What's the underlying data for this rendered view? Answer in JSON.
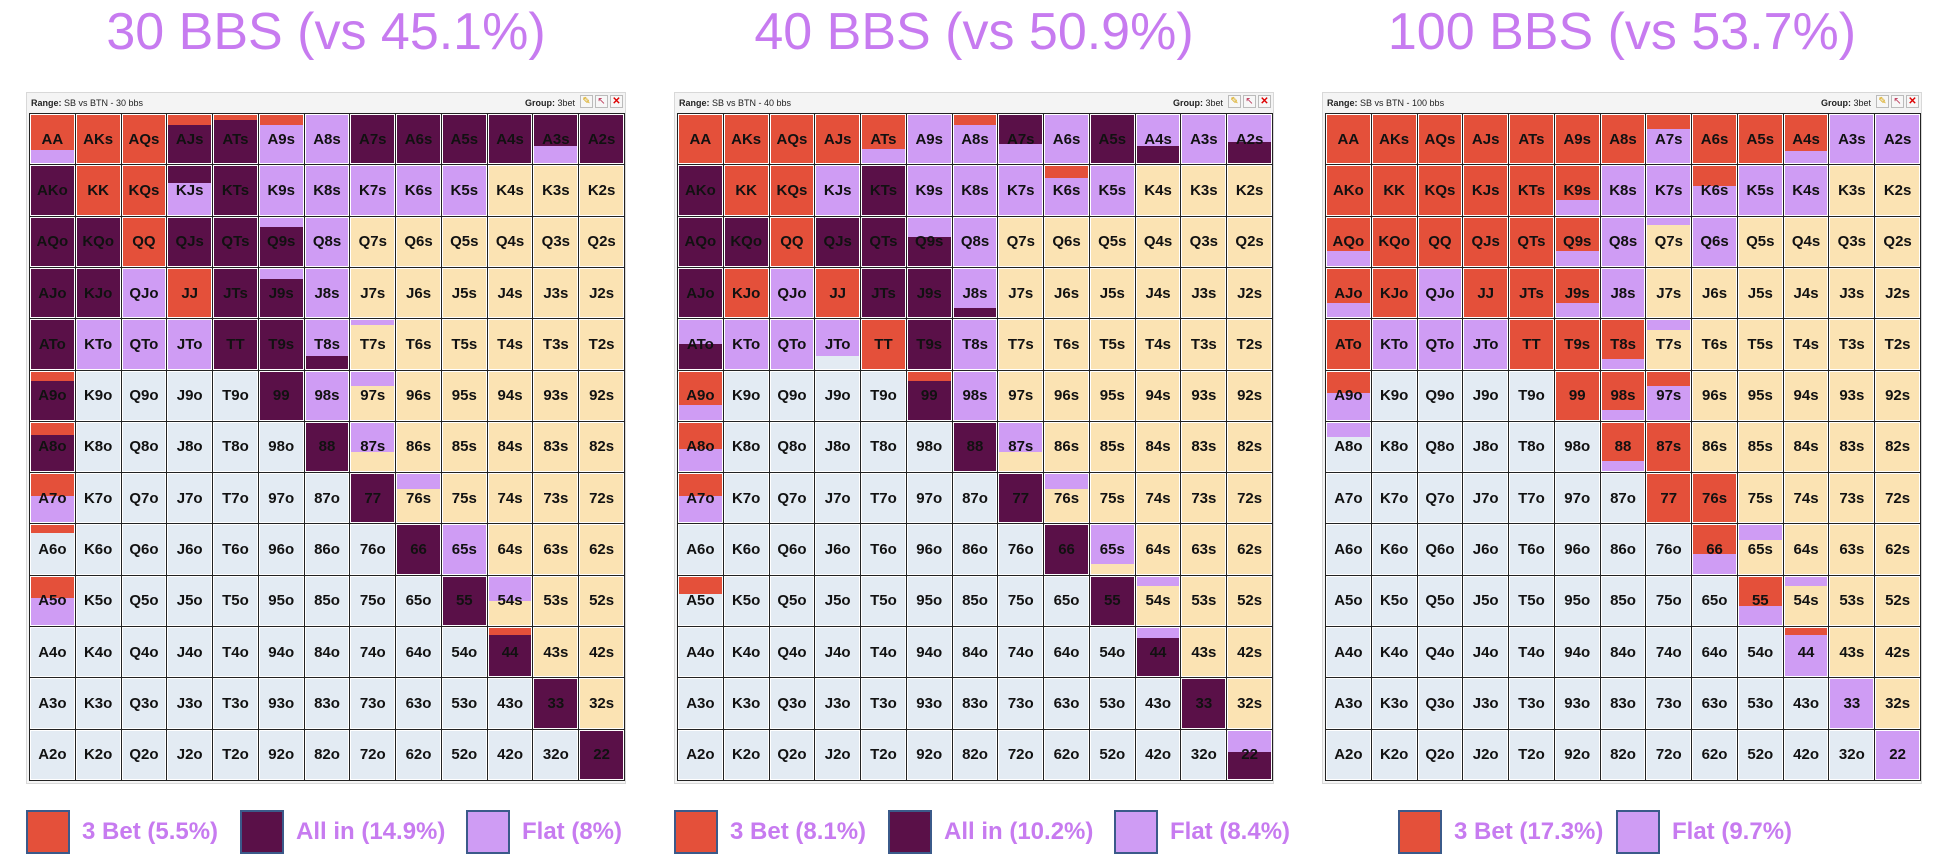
{
  "colors": {
    "threebet": "#e4503a",
    "allin": "#5a1048",
    "flat": "#cf9cf4",
    "pair": "#d9d9d9",
    "suited": "#fbe3b3",
    "offsuit": "#e3ebf3",
    "title": "#c77bf0",
    "legend_border": "#3b5a8a"
  },
  "ranks": [
    "A",
    "K",
    "Q",
    "J",
    "T",
    "9",
    "8",
    "7",
    "6",
    "5",
    "4",
    "3",
    "2"
  ],
  "panels": [
    {
      "title": "30 BBS (vs 45.1%)",
      "window": {
        "range_label": "Range:",
        "range_value": "SB vs BTN - 30 bbs",
        "group_label": "Group:",
        "group_value": "3bet",
        "icons": [
          "pencil-icon",
          "pointer-icon",
          "close-icon"
        ]
      },
      "special": {
        "AA": "r0.72f0.28",
        "AKs": "r",
        "AQs": "r",
        "AJs": "r0.2a0.8",
        "ATs": "r0.1a0.9",
        "A9s": "r0.2f0.8",
        "A8s": "f",
        "A7s": "a",
        "A6s": "a",
        "A5s": "a",
        "A4s": "a",
        "A3s": "a0.65f0.35",
        "A2s": "a",
        "AKo": "a",
        "KK": "r",
        "KQs": "r",
        "KJs": "a0.35f0.65",
        "KTs": "a",
        "K9s": "f",
        "K8s": "f",
        "K7s": "f",
        "K6s": "f",
        "K5s": "f",
        "AQo": "a",
        "KQo": "a",
        "QQ": "r",
        "QJs": "a",
        "QTs": "a",
        "Q9s": "f0.2a0.8",
        "Q8s": "f",
        "AJo": "a",
        "KJo": "a",
        "QJo": "f",
        "JJ": "r",
        "JTs": "a",
        "J9s": "f0.2a0.8",
        "J8s": "f",
        "ATo": "a",
        "KTo": "f",
        "QTo": "f",
        "JTo": "f",
        "TT": "a",
        "T9s": "a",
        "T8s": "f0.75a0.25",
        "T7s": "f0.1",
        "A9o": "r0.2a0.8",
        "99": "a",
        "98s": "f",
        "97s": "f0.3",
        "A8o": "r0.25a0.75",
        "88": "a",
        "87s": "f0.6",
        "A7o": "r0.45f0.55",
        "77": "a",
        "76s": "f0.3",
        "A6o": "r0.15",
        "66": "a",
        "65s": "f",
        "A5o": "r0.45f0.55",
        "55": "a",
        "54s": "f0.5",
        "44": "r0.15a0.85",
        "33": "a",
        "22": "a"
      },
      "legend": [
        {
          "key": "threebet",
          "label": "3 Bet (5.5%)"
        },
        {
          "key": "allin",
          "label": "All in (14.9%)"
        },
        {
          "key": "flat",
          "label": "Flat (8%)"
        }
      ]
    },
    {
      "title": "40 BBS (vs 50.9%)",
      "window": {
        "range_label": "Range:",
        "range_value": "SB vs BTN - 40 bbs",
        "group_label": "Group:",
        "group_value": "3bet",
        "icons": [
          "pencil-icon",
          "pointer-icon",
          "close-icon"
        ]
      },
      "special": {
        "AA": "r",
        "AKs": "r",
        "AQs": "r",
        "AJs": "r",
        "ATs": "r0.7f0.3",
        "A9s": "f",
        "A8s": "r0.2f0.8",
        "A7s": "a0.6f0.4",
        "A6s": "f",
        "A5s": "a",
        "A4s": "f0.65a0.35",
        "A3s": "f",
        "A2s": "f0.55a0.45",
        "AKo": "a",
        "KK": "r",
        "KQs": "r",
        "KJs": "f",
        "KTs": "a",
        "K9s": "f",
        "K8s": "f",
        "K7s": "f",
        "K6s": "r0.25f0.75",
        "K5s": "f",
        "AQo": "a",
        "KQo": "a",
        "QQ": "r",
        "QJs": "a",
        "QTs": "a",
        "Q9s": "f0.4a0.6",
        "Q8s": "f",
        "AJo": "a",
        "KJo": "r",
        "QJo": "f",
        "JJ": "r",
        "JTs": "a",
        "J9s": "a",
        "J8s": "f0.8a0.2",
        "ATo": "f0.5a0.5",
        "KTo": "f",
        "QTo": "f",
        "JTo": "f0.75",
        "TT": "r",
        "T9s": "a",
        "T8s": "f",
        "A9o": "r0.7f0.3",
        "99": "r0.2a0.8",
        "98s": "f",
        "A8o": "r0.55f0.45",
        "88": "a",
        "87s": "f0.6",
        "A7o": "r0.45f0.55",
        "77": "a",
        "76s": "f0.3",
        "66": "a",
        "65s": "f0.8",
        "A5o": "r0.35",
        "55": "a",
        "54s": "f0.2",
        "44": "f0.2a0.8",
        "33": "a",
        "22": "f0.45a0.55"
      },
      "legend": [
        {
          "key": "threebet",
          "label": "3 Bet (8.1%)"
        },
        {
          "key": "allin",
          "label": "All in (10.2%)"
        },
        {
          "key": "flat",
          "label": "Flat (8.4%)"
        }
      ]
    },
    {
      "title": "100 BBS (vs 53.7%)",
      "window": {
        "range_label": "Range:",
        "range_value": "SB vs BTN - 100 bbs",
        "group_label": "Group:",
        "group_value": "3bet",
        "icons": [
          "pencil-icon",
          "pointer-icon",
          "close-icon"
        ]
      },
      "special": {
        "AA": "r",
        "AKs": "r",
        "AQs": "r",
        "AJs": "r",
        "ATs": "r",
        "A9s": "r",
        "A8s": "r",
        "A7s": "r0.3f0.7",
        "A6s": "r",
        "A5s": "r",
        "A4s": "r0.75f0.25",
        "A3s": "f",
        "A2s": "f",
        "AKo": "r",
        "KK": "r",
        "KQs": "r",
        "KJs": "r",
        "KTs": "r",
        "K9s": "r0.7f0.3",
        "K8s": "f",
        "K7s": "f",
        "K6s": "r0.4f0.6",
        "K5s": "f",
        "K4s": "f",
        "AQo": "r0.7f0.3",
        "KQo": "r",
        "QQ": "r",
        "QJs": "r",
        "QTs": "r",
        "Q9s": "r0.7f0.3",
        "Q8s": "f",
        "Q7s": "f0.15",
        "Q6s": "f",
        "AJo": "r0.7f0.3",
        "KJo": "r",
        "QJo": "f",
        "JJ": "r",
        "JTs": "r",
        "J9s": "r0.7f0.3",
        "J8s": "f",
        "ATo": "r",
        "KTo": "f",
        "QTo": "f",
        "JTo": "f",
        "TT": "r",
        "T9s": "r",
        "T8s": "r0.8f0.2",
        "T7s": "f0.2",
        "A9o": "r0.45f0.55",
        "99": "r",
        "98s": "r0.8f0.2",
        "97s": "r0.3f0.7",
        "A8o": "f0.3",
        "88": "r0.8f0.2",
        "87s": "r",
        "77": "r",
        "76s": "r",
        "66": "r0.6f0.4",
        "65s": "f0.3",
        "55": "r0.6f0.4",
        "54s": "f0.2",
        "44": "r0.15f0.85",
        "33": "f",
        "22": "f"
      },
      "legend": [
        {
          "key": "threebet",
          "label": "3 Bet (17.3%)"
        },
        {
          "key": "flat",
          "label": "Flat (9.7%)"
        }
      ]
    }
  ]
}
